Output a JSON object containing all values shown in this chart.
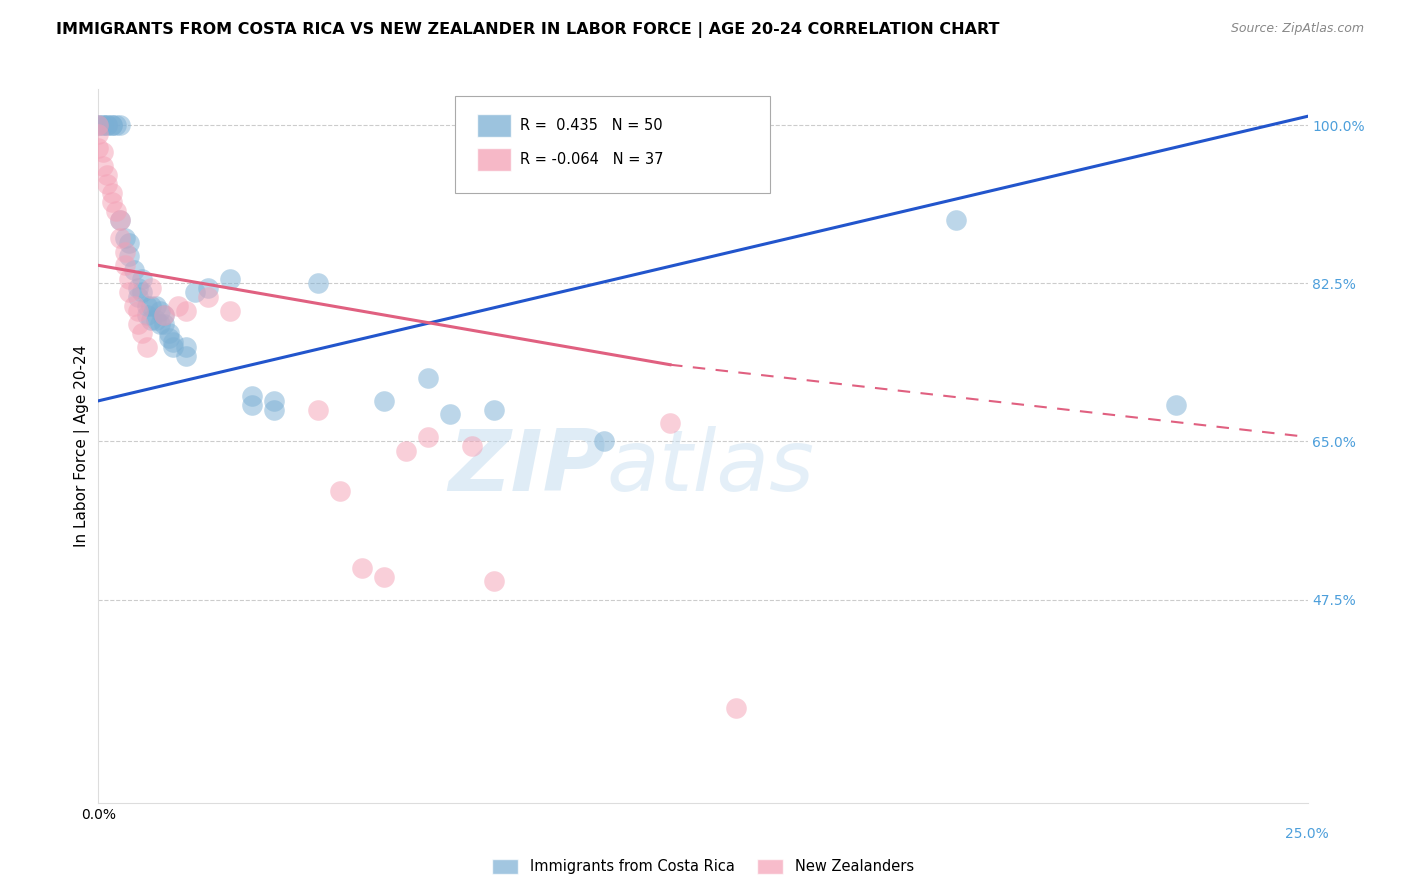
{
  "title": "IMMIGRANTS FROM COSTA RICA VS NEW ZEALANDER IN LABOR FORCE | AGE 20-24 CORRELATION CHART",
  "source": "Source: ZipAtlas.com",
  "ylabel": "In Labor Force | Age 20-24",
  "r_blue": 0.435,
  "n_blue": 50,
  "r_pink": -0.064,
  "n_pink": 37,
  "legend_blue": "Immigrants from Costa Rica",
  "legend_pink": "New Zealanders",
  "y_ticks": [
    0.475,
    0.65,
    0.825,
    1.0
  ],
  "y_tick_labels": [
    "47.5%",
    "65.0%",
    "82.5%",
    "100.0%"
  ],
  "xmin": 0.0,
  "xmax": 0.275,
  "ymin": 0.25,
  "ymax": 1.04,
  "blue_scatter": [
    [
      0.0,
      1.0
    ],
    [
      0.0,
      1.0
    ],
    [
      0.001,
      1.0
    ],
    [
      0.001,
      1.0
    ],
    [
      0.002,
      1.0
    ],
    [
      0.002,
      1.0
    ],
    [
      0.003,
      1.0
    ],
    [
      0.003,
      1.0
    ],
    [
      0.004,
      1.0
    ],
    [
      0.005,
      1.0
    ],
    [
      0.005,
      0.895
    ],
    [
      0.006,
      0.875
    ],
    [
      0.007,
      0.87
    ],
    [
      0.007,
      0.855
    ],
    [
      0.008,
      0.84
    ],
    [
      0.009,
      0.82
    ],
    [
      0.009,
      0.81
    ],
    [
      0.01,
      0.83
    ],
    [
      0.01,
      0.815
    ],
    [
      0.011,
      0.8
    ],
    [
      0.011,
      0.79
    ],
    [
      0.012,
      0.8
    ],
    [
      0.012,
      0.785
    ],
    [
      0.013,
      0.8
    ],
    [
      0.013,
      0.785
    ],
    [
      0.014,
      0.795
    ],
    [
      0.014,
      0.78
    ],
    [
      0.015,
      0.79
    ],
    [
      0.015,
      0.78
    ],
    [
      0.016,
      0.77
    ],
    [
      0.016,
      0.765
    ],
    [
      0.017,
      0.76
    ],
    [
      0.017,
      0.755
    ],
    [
      0.02,
      0.755
    ],
    [
      0.02,
      0.745
    ],
    [
      0.022,
      0.815
    ],
    [
      0.025,
      0.82
    ],
    [
      0.03,
      0.83
    ],
    [
      0.035,
      0.7
    ],
    [
      0.035,
      0.69
    ],
    [
      0.04,
      0.695
    ],
    [
      0.04,
      0.685
    ],
    [
      0.05,
      0.825
    ],
    [
      0.065,
      0.695
    ],
    [
      0.075,
      0.72
    ],
    [
      0.08,
      0.68
    ],
    [
      0.09,
      0.685
    ],
    [
      0.115,
      0.65
    ],
    [
      0.195,
      0.895
    ],
    [
      0.245,
      0.69
    ]
  ],
  "pink_scatter": [
    [
      0.0,
      1.0
    ],
    [
      0.0,
      0.99
    ],
    [
      0.0,
      0.975
    ],
    [
      0.001,
      0.97
    ],
    [
      0.001,
      0.955
    ],
    [
      0.002,
      0.945
    ],
    [
      0.002,
      0.935
    ],
    [
      0.003,
      0.925
    ],
    [
      0.003,
      0.915
    ],
    [
      0.004,
      0.905
    ],
    [
      0.005,
      0.895
    ],
    [
      0.005,
      0.875
    ],
    [
      0.006,
      0.86
    ],
    [
      0.006,
      0.845
    ],
    [
      0.007,
      0.83
    ],
    [
      0.007,
      0.815
    ],
    [
      0.008,
      0.8
    ],
    [
      0.009,
      0.795
    ],
    [
      0.009,
      0.78
    ],
    [
      0.01,
      0.77
    ],
    [
      0.011,
      0.755
    ],
    [
      0.012,
      0.82
    ],
    [
      0.015,
      0.79
    ],
    [
      0.018,
      0.8
    ],
    [
      0.02,
      0.795
    ],
    [
      0.025,
      0.81
    ],
    [
      0.03,
      0.795
    ],
    [
      0.05,
      0.685
    ],
    [
      0.055,
      0.595
    ],
    [
      0.06,
      0.51
    ],
    [
      0.065,
      0.5
    ],
    [
      0.07,
      0.64
    ],
    [
      0.075,
      0.655
    ],
    [
      0.085,
      0.645
    ],
    [
      0.09,
      0.495
    ],
    [
      0.13,
      0.67
    ],
    [
      0.145,
      0.355
    ]
  ],
  "blue_line": [
    0.0,
    0.275,
    0.695,
    1.01
  ],
  "pink_solid": [
    0.0,
    0.13,
    0.845,
    0.735
  ],
  "pink_dashed": [
    0.13,
    0.275,
    0.735,
    0.655
  ],
  "watermark_zip": "ZIP",
  "watermark_atlas": "atlas",
  "bg_color": "#ffffff",
  "grid_color": "#cccccc",
  "blue_dot_color": "#7bafd4",
  "pink_dot_color": "#f4a0b5",
  "blue_line_color": "#2255cc",
  "pink_line_color": "#e06080",
  "title_fontsize": 11.5,
  "axis_label_fontsize": 11,
  "tick_fontsize": 10,
  "right_tick_color": "#4d9fdb",
  "legend_r_color_blue": "#4488cc",
  "legend_r_color_pink": "#dd4466"
}
